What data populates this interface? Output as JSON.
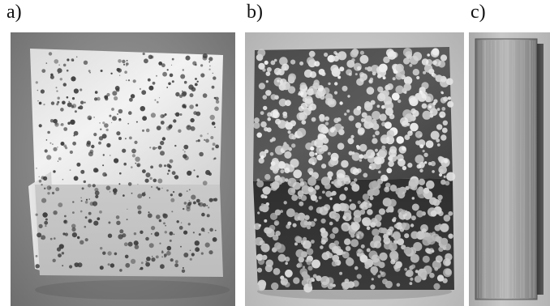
{
  "figure": {
    "panels": [
      {
        "label": "a)",
        "subject": "aluminium-foam-cube-light"
      },
      {
        "label": "b)",
        "subject": "aluminium-foam-cube-dark"
      },
      {
        "label": "c)",
        "subject": "solid-metal-bar"
      }
    ]
  }
}
